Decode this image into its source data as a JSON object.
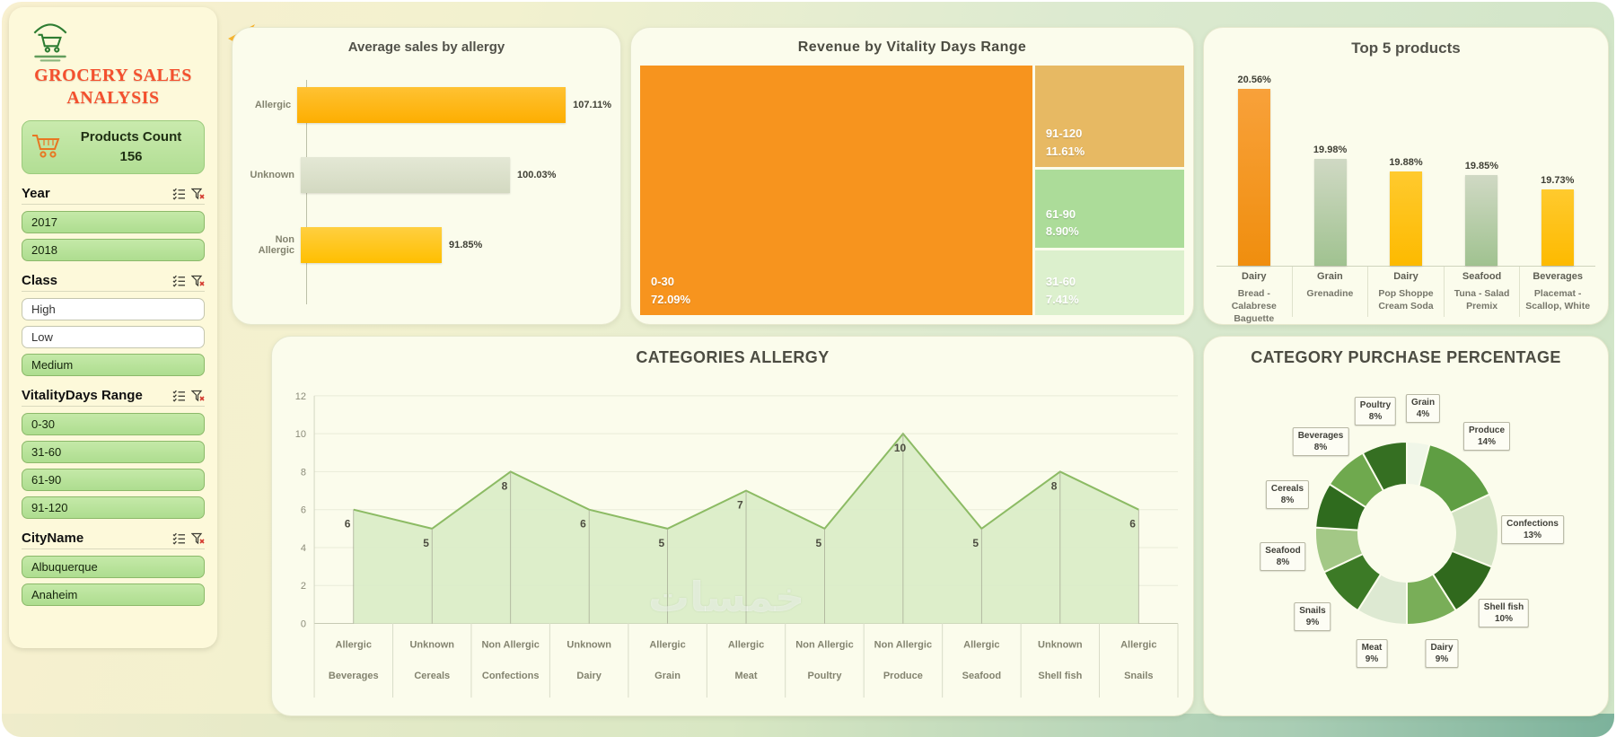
{
  "theme": {
    "title_color": "#f4502e",
    "accent_orange": "#F7941E",
    "accent_yellow": "#FFC000",
    "slicer_green": "#B9E49C",
    "panel_bg": "#FBFCEC"
  },
  "icons": {
    "logo": "grocery-logo",
    "back": "back-arrow",
    "cart": "shopping-cart",
    "slicer_list": "checklist",
    "slicer_clear": "clear-filter"
  },
  "app": {
    "title": "GROCERY SALES ANALYSIS"
  },
  "watermark": {
    "text": "خمسات"
  },
  "sidebar": {
    "products_count": {
      "label": "Products Count",
      "value": "156"
    },
    "slicers": [
      {
        "title": "Year",
        "items": [
          {
            "label": "2017",
            "selected": true
          },
          {
            "label": "2018",
            "selected": true
          }
        ]
      },
      {
        "title": "Class",
        "items": [
          {
            "label": "High",
            "selected": false
          },
          {
            "label": "Low",
            "selected": false
          },
          {
            "label": "Medium",
            "selected": true
          }
        ]
      },
      {
        "title": "VitalityDays Range",
        "items": [
          {
            "label": "0-30",
            "selected": true
          },
          {
            "label": "31-60",
            "selected": true
          },
          {
            "label": "61-90",
            "selected": true
          },
          {
            "label": "91-120",
            "selected": true
          }
        ]
      },
      {
        "title": "CityName",
        "items": [
          {
            "label": "Albuquerque",
            "selected": true
          },
          {
            "label": "Anaheim",
            "selected": true
          }
        ]
      }
    ]
  },
  "chart_data": [
    {
      "id": "avg_sales_by_allergy",
      "type": "bar",
      "orientation": "horizontal",
      "title": "Average sales by allergy",
      "categories": [
        "Allergic",
        "Unknown",
        "Non Allergic"
      ],
      "values": [
        107.11,
        100.03,
        91.85
      ],
      "value_labels": [
        "107.11%",
        "100.03%",
        "91.85%"
      ],
      "colors": [
        [
          "#ffc233",
          "#fdae00"
        ],
        [
          "#e4e8d5",
          "#d3d9c1"
        ],
        [
          "#ffcf40",
          "#ffbf00"
        ]
      ],
      "axis_min": 75
    },
    {
      "id": "revenue_by_vitality",
      "type": "treemap",
      "title": "Revenue by Vitality Days Range",
      "slices": [
        {
          "label": "0-30",
          "pct": 72.09,
          "pct_label": "72.09%",
          "color": "#F7941E"
        },
        {
          "label": "91-120",
          "pct": 11.61,
          "pct_label": "11.61%",
          "color": "#E7B963"
        },
        {
          "label": "61-90",
          "pct": 8.9,
          "pct_label": "8.90%",
          "color": "#ACDC99"
        },
        {
          "label": "31-60",
          "pct": 7.41,
          "pct_label": "7.41%",
          "color": "#DCF0CD"
        }
      ]
    },
    {
      "id": "top5_products",
      "type": "bar",
      "orientation": "vertical",
      "title": "Top 5 products",
      "groups": [
        "Dairy",
        "Grain",
        "Dairy",
        "Seafood",
        "Beverages"
      ],
      "products": [
        "Bread - Calabrese Baguette",
        "Grenadine",
        "Pop Shoppe Cream Soda",
        "Tuna - Salad Premix",
        "Placemat - Scallop, White"
      ],
      "values": [
        20.56,
        19.98,
        19.88,
        19.85,
        19.73
      ],
      "value_labels": [
        "20.56%",
        "19.98%",
        "19.88%",
        "19.85%",
        "19.73%"
      ],
      "colors": [
        [
          "#f8a13a",
          "#f08e0e"
        ],
        [
          "#d0d9c4",
          "#a0c290"
        ],
        [
          "#ffca2e",
          "#fdba00"
        ],
        [
          "#d0d9c4",
          "#a0c290"
        ],
        [
          "#ffca2e",
          "#fdba00"
        ]
      ],
      "axis_min": 19.1
    },
    {
      "id": "categories_allergy",
      "type": "area",
      "title": "CATEGORIES ALLERGY",
      "allergy": [
        "Allergic",
        "Unknown",
        "Non Allergic",
        "Unknown",
        "Allergic",
        "Allergic",
        "Non Allergic",
        "Non Allergic",
        "Allergic",
        "Unknown",
        "Allergic"
      ],
      "categories": [
        "Beverages",
        "Cereals",
        "Confections",
        "Dairy",
        "Grain",
        "Meat",
        "Poultry",
        "Produce",
        "Seafood",
        "Shell fish",
        "Snails"
      ],
      "values": [
        6,
        5,
        8,
        6,
        5,
        7,
        5,
        10,
        5,
        8,
        6
      ],
      "ylim": [
        0,
        12
      ],
      "yticks": [
        0,
        2,
        4,
        6,
        8,
        10,
        12
      ],
      "fill_color": "#d9ecc6",
      "line_color": "#8cbb64"
    },
    {
      "id": "category_purchase",
      "type": "donut",
      "title": "CATEGORY PURCHASE PERCENTAGE",
      "slices": [
        {
          "label": "Grain",
          "pct": 4,
          "color": "#f0f6e8"
        },
        {
          "label": "Produce",
          "pct": 14,
          "color": "#5f9e43"
        },
        {
          "label": "Confections",
          "pct": 13,
          "color": "#d3e3c3"
        },
        {
          "label": "Shell fish",
          "pct": 10,
          "color": "#30691d"
        },
        {
          "label": "Dairy",
          "pct": 9,
          "color": "#79ae58"
        },
        {
          "label": "Meat",
          "pct": 9,
          "color": "#dde9d2"
        },
        {
          "label": "Snails",
          "pct": 9,
          "color": "#3c7a26"
        },
        {
          "label": "Seafood",
          "pct": 8,
          "color": "#a3c886"
        },
        {
          "label": "Cereals",
          "pct": 8,
          "color": "#2f6b1e"
        },
        {
          "label": "Beverages",
          "pct": 8,
          "color": "#6fa94e"
        },
        {
          "label": "Poultry",
          "pct": 8,
          "color": "#356f22"
        }
      ]
    }
  ]
}
